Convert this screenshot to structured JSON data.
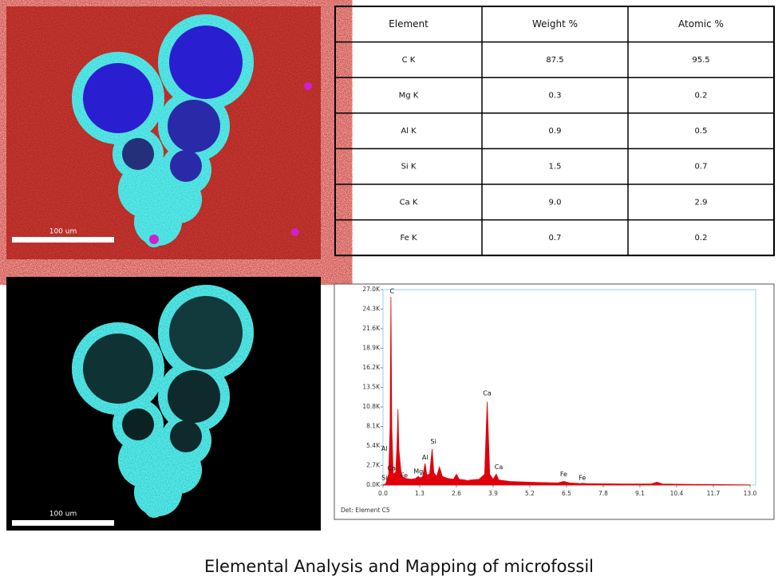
{
  "images": [
    {
      "scale_label": "100 um"
    },
    {
      "scale_label": "100 um"
    }
  ],
  "table": {
    "header": [
      "Element",
      "Weight %",
      "Atomic %"
    ],
    "rows": [
      [
        "C  K",
        "87.5",
        "95.5"
      ],
      [
        "Mg K",
        "0.3",
        "0.2"
      ],
      [
        "Al K",
        "0.9",
        "0.5"
      ],
      [
        "Si K",
        "1.5",
        "0.7"
      ],
      [
        "Ca K",
        "9.0",
        "2.9"
      ],
      [
        "Fe K",
        "0.7",
        "0.2"
      ]
    ]
  },
  "chart_data": {
    "type": "area",
    "color": "#e0000a",
    "footer": "Det: Element C5",
    "x": [
      0,
      0.1,
      0.2,
      0.25,
      0.28,
      0.31,
      0.36,
      0.45,
      0.5,
      0.53,
      0.56,
      0.65,
      0.8,
      1.0,
      1.15,
      1.25,
      1.3,
      1.4,
      1.49,
      1.55,
      1.65,
      1.74,
      1.8,
      1.9,
      2.0,
      2.1,
      2.3,
      2.5,
      2.6,
      2.7,
      2.9,
      3.0,
      3.1,
      3.4,
      3.6,
      3.69,
      3.78,
      3.9,
      4.01,
      4.1,
      4.5,
      5.5,
      6.2,
      6.4,
      6.6,
      7.0,
      7.06,
      7.2,
      8.5,
      9.5,
      9.7,
      9.9,
      11,
      12,
      13
    ],
    "values": [
      0,
      200,
      1500,
      8000,
      26000,
      8000,
      1500,
      1800,
      6000,
      10500,
      5000,
      1300,
      900,
      800,
      900,
      1200,
      1000,
      1100,
      3000,
      1400,
      1500,
      5000,
      1700,
      1200,
      2500,
      1200,
      900,
      800,
      1500,
      800,
      700,
      600,
      700,
      800,
      1500,
      11500,
      1500,
      800,
      1500,
      700,
      500,
      350,
      300,
      500,
      300,
      200,
      250,
      200,
      150,
      150,
      400,
      150,
      100,
      60,
      30
    ],
    "xlim": [
      0,
      13.2
    ],
    "ylim": [
      0,
      27000
    ],
    "xticks": [
      {
        "value": 0,
        "label": "0.0"
      },
      1.3,
      2.6,
      3.9,
      5.2,
      6.5,
      7.8,
      9.1,
      10.4,
      11.7,
      {
        "value": 13,
        "label": "13.0"
      }
    ],
    "yticks": [
      {
        "value": 0,
        "label": "0.0K"
      },
      {
        "value": 2700,
        "label": "2.7K"
      },
      {
        "value": 5400,
        "label": "5.4K"
      },
      {
        "value": 8100,
        "label": "8.1K"
      },
      {
        "value": 10800,
        "label": "10.8K"
      },
      {
        "value": 13500,
        "label": "13.5K"
      },
      {
        "value": 16200,
        "label": "16.2K"
      },
      {
        "value": 18900,
        "label": "18.9K"
      },
      {
        "value": 21600,
        "label": "21.6K"
      },
      {
        "value": 24300,
        "label": "24.3K"
      },
      {
        "value": 27000,
        "label": "27.0K"
      }
    ],
    "annotations": [
      {
        "text": "C",
        "x": 0.32,
        "y": 26800
      },
      {
        "text": "Al",
        "x": 0.05,
        "y": 5000
      },
      {
        "text": "Ca",
        "x": 0.3,
        "y": 2300
      },
      {
        "text": "Si",
        "x": 0.05,
        "y": 1000
      },
      {
        "text": "Fe",
        "x": 0.75,
        "y": 1300
      },
      {
        "text": "Mg",
        "x": 1.25,
        "y": 1900
      },
      {
        "text": "Al",
        "x": 1.49,
        "y": 3800
      },
      {
        "text": "Si",
        "x": 1.78,
        "y": 6000
      },
      {
        "text": "Ca",
        "x": 3.69,
        "y": 12700
      },
      {
        "text": "Ca",
        "x": 4.1,
        "y": 2500
      },
      {
        "text": "Fe",
        "x": 6.4,
        "y": 1500
      },
      {
        "text": "Fe",
        "x": 7.06,
        "y": 1000
      }
    ]
  },
  "caption": "Elemental Analysis and  Mapping of microfossil"
}
